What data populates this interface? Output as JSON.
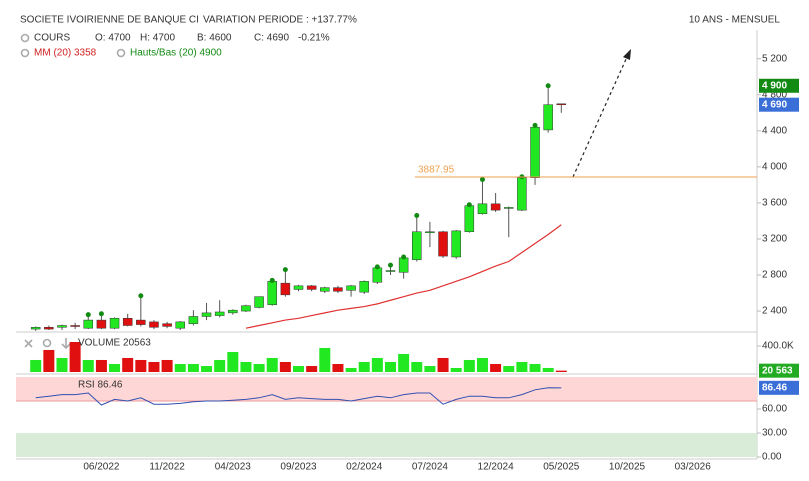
{
  "header": {
    "title": "SOCIETE IVOIRIENNE DE BANQUE CI",
    "variation": "VARIATION PERIODE : +137.77%",
    "period": "10 ANS - MENSUEL"
  },
  "legend": {
    "cours": "COURS",
    "open": "O: 4700",
    "high": "H: 4700",
    "low": "B: 4600",
    "close": "C: 4690",
    "change": "-0.21%",
    "mm": "MM (20) 3358",
    "hauts_bas": "Hauts/Bas (20) 4900"
  },
  "chart_data": [
    {
      "type": "candlestick",
      "categories": [
        null,
        null,
        null,
        null,
        null,
        null,
        "06/2022",
        null,
        null,
        null,
        null,
        "11/2022",
        null,
        null,
        null,
        null,
        "04/2023",
        null,
        null,
        null,
        null,
        "09/2023",
        null,
        null,
        null,
        null,
        "02/2024",
        null,
        null,
        null,
        null,
        "07/2024",
        null,
        null,
        null,
        null,
        "12/2024",
        null,
        null,
        null,
        null,
        "05/2025",
        null,
        null,
        null,
        null,
        "10/2025",
        null,
        null,
        null,
        null,
        "03/2026",
        null,
        null,
        null,
        null
      ],
      "open": [
        null,
        2200,
        2220,
        2220,
        2240,
        2210,
        2300,
        2210,
        2320,
        2300,
        2280,
        2260,
        2210,
        2260,
        2340,
        2350,
        2380,
        2400,
        2440,
        2470,
        2710,
        2640,
        2680,
        2620,
        2660,
        2630,
        2610,
        2720,
        2840,
        2830,
        2970,
        3270,
        3280,
        3000,
        3280,
        3480,
        3590,
        3540,
        3520,
        3880,
        4410,
        4700,
        null,
        null,
        null,
        null,
        null,
        null,
        null,
        null,
        null,
        null,
        null,
        null,
        null,
        null
      ],
      "high": [
        null,
        2230,
        2240,
        2250,
        2270,
        2360,
        2370,
        2330,
        2370,
        2570,
        2300,
        2280,
        2290,
        2410,
        2490,
        2520,
        2420,
        2470,
        2560,
        2740,
        2860,
        2690,
        2690,
        2670,
        2680,
        2690,
        2740,
        2890,
        2910,
        3000,
        3460,
        3390,
        3290,
        3300,
        3580,
        3860,
        3710,
        3560,
        3890,
        4460,
        4900,
        4700,
        null,
        null,
        null,
        null,
        null,
        null,
        null,
        null,
        null,
        null,
        null,
        null,
        null,
        null
      ],
      "low": [
        null,
        2180,
        2190,
        2190,
        2200,
        2200,
        2200,
        2200,
        2230,
        2230,
        2200,
        2210,
        2190,
        2240,
        2300,
        2330,
        2360,
        2390,
        2430,
        2460,
        2560,
        2620,
        2620,
        2600,
        2600,
        2560,
        2590,
        2700,
        2800,
        2760,
        2950,
        3110,
        2990,
        2980,
        3270,
        3470,
        3500,
        3220,
        3510,
        3800,
        4380,
        4600,
        null,
        null,
        null,
        null,
        null,
        null,
        null,
        null,
        null,
        null,
        null,
        null,
        null,
        null
      ],
      "close": [
        null,
        2220,
        2200,
        2240,
        2230,
        2300,
        2210,
        2320,
        2240,
        2250,
        2220,
        2230,
        2280,
        2340,
        2380,
        2390,
        2410,
        2460,
        2560,
        2730,
        2580,
        2680,
        2640,
        2660,
        2620,
        2680,
        2730,
        2880,
        2850,
        2990,
        3280,
        3280,
        3010,
        3290,
        3570,
        3590,
        3520,
        3550,
        3880,
        4440,
        4690,
        4690,
        null,
        null,
        null,
        null,
        null,
        null,
        null,
        null,
        null,
        null,
        null,
        null,
        null,
        null
      ],
      "up_color": "#22e822",
      "down_color": "#e01010",
      "ma": {
        "color": "#e03030",
        "values": [
          null,
          null,
          null,
          null,
          null,
          null,
          null,
          null,
          null,
          null,
          null,
          null,
          null,
          null,
          null,
          null,
          null,
          2210,
          2240,
          2270,
          2300,
          2320,
          2350,
          2380,
          2410,
          2430,
          2450,
          2480,
          2520,
          2560,
          2600,
          2630,
          2680,
          2730,
          2780,
          2840,
          2900,
          2950,
          3050,
          3150,
          3250,
          3358,
          null,
          null,
          null,
          null,
          null,
          null,
          null,
          null,
          null,
          null,
          null,
          null,
          null,
          null
        ]
      },
      "level": {
        "value": 3887.95,
        "label": "3887.95",
        "color": "#f0a050"
      },
      "markers": [
        {
          "value": 4900,
          "label": "4 900",
          "color": "#138a13"
        },
        {
          "value": 4690,
          "label": "4 690",
          "color": "#3a6fd8"
        }
      ],
      "ylim": [
        2190,
        5430
      ],
      "yticks": [
        {
          "value": 2400,
          "label": "2 400"
        },
        {
          "value": 2800,
          "label": "2 800"
        },
        {
          "value": 3200,
          "label": "3 200"
        },
        {
          "value": 3600,
          "label": "3 600"
        },
        {
          "value": 4000,
          "label": "4 000"
        },
        {
          "value": 4400,
          "label": "4 400"
        },
        {
          "value": 4800,
          "label": "4 800"
        },
        {
          "value": 5200,
          "label": "5 200"
        }
      ],
      "grid": false
    },
    {
      "type": "volume",
      "label": "VOLUME 20563",
      "values": [
        null,
        185000,
        339000,
        216000,
        462000,
        185000,
        185000,
        123000,
        216000,
        185000,
        154000,
        185000,
        123000,
        123000,
        92000,
        185000,
        308000,
        154000,
        123000,
        216000,
        154000,
        92000,
        92000,
        370000,
        123000,
        62000,
        154000,
        216000,
        154000,
        277000,
        154000,
        92000,
        216000,
        62000,
        185000,
        216000,
        123000,
        92000,
        154000,
        123000,
        62000,
        20563,
        null,
        null,
        null,
        null,
        null,
        null,
        null,
        null,
        null,
        null,
        null,
        null,
        null,
        null
      ],
      "marker": {
        "value": 20563,
        "label": "20 563",
        "color": "#22aa22"
      },
      "ylim": [
        0,
        585000
      ],
      "yticks": [
        {
          "value": 400000,
          "label": "400.0K"
        }
      ]
    },
    {
      "type": "rsi",
      "label": "RSI 86.46",
      "color": "#3050b0",
      "values": [
        null,
        74,
        76,
        78,
        78,
        80,
        65,
        72,
        70,
        74,
        66,
        66,
        67,
        69,
        70,
        70,
        71,
        72,
        74,
        78,
        72,
        74,
        73,
        72,
        72,
        70,
        73,
        76,
        74,
        78,
        80,
        80,
        66,
        72,
        76,
        76,
        74,
        74,
        78,
        84,
        86.5,
        86.46,
        null,
        null,
        null,
        null,
        null,
        null,
        null,
        null,
        null,
        null,
        null,
        null,
        null,
        null
      ],
      "overbought": 70,
      "oversold": 30,
      "marker": {
        "value": 86.46,
        "label": "86.46",
        "color": "#3a6fd8"
      },
      "ylim": [
        0,
        100
      ],
      "yticks": [
        {
          "value": 0,
          "label": "0.00"
        },
        {
          "value": 30,
          "label": "30.00"
        },
        {
          "value": 60,
          "label": "60.00"
        }
      ]
    }
  ]
}
